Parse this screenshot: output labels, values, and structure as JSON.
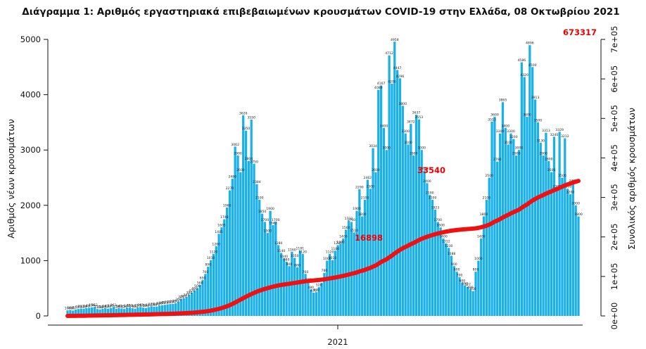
{
  "chart_data": {
    "type": "bar",
    "title": "Διάγραμμα 1: Αριθμός εργαστηριακά επιβεβαιωμένων κρουσμάτων COVID-19 στην Ελλάδα, 08 Οκτωβρίου 2021",
    "ylabel": "Αριθμός νέων κρουσμάτων",
    "y2label": "Συνολικός αριθμός κρουσμάτων",
    "xlabel": "",
    "ylim": [
      0,
      5000
    ],
    "y2lim": [
      0,
      700000
    ],
    "yticks": [
      "0",
      "1000",
      "2000",
      "3000",
      "4000",
      "5000"
    ],
    "y2ticks": [
      "0e+00",
      "1e+05",
      "2e+05",
      "3e+05",
      "4e+05",
      "5e+05",
      "6e+05",
      "7e+05"
    ],
    "xticks": [
      "2021"
    ],
    "colors": {
      "bars": "#1ab0e8",
      "cumulative": "#ee1111",
      "labels": "#ee0000"
    },
    "series": [
      {
        "name": "",
        "kind": "bar",
        "values": [
          100,
          109,
          97,
          117,
          125,
          133,
          129,
          141,
          147,
          156,
          162,
          125,
          118,
          130,
          142,
          132,
          145,
          161,
          128,
          140,
          135,
          126,
          148,
          152,
          140,
          132,
          155,
          162,
          150,
          144,
          160,
          175,
          168,
          170,
          188,
          195,
          201,
          210,
          215,
          220,
          230,
          260,
          305,
          320,
          345,
          380,
          420,
          460,
          500,
          560,
          650,
          760,
          890,
          1010,
          1120,
          1260,
          1485,
          1605,
          1748,
          1960,
          2270,
          2480,
          3062,
          2900,
          2600,
          3626,
          3350,
          2804,
          3550,
          2750,
          2384,
          2100,
          1850,
          1700,
          1500,
          1900,
          1642,
          1700,
          1280,
          1140,
          1040,
          980,
          900,
          1160,
          1050,
          880,
          1181,
          1120,
          760,
          620,
          480,
          420,
          430,
          520,
          600,
          780,
          1000,
          1120,
          1010,
          1180,
          1280,
          1300,
          1400,
          1560,
          1722,
          1700,
          1510,
          1900,
          2290,
          1800,
          2100,
          2462,
          2300,
          3034,
          2600,
          4089,
          4167,
          3400,
          3000,
          4712,
          4200,
          4958,
          4447,
          4296,
          3800,
          3300,
          3100,
          3472,
          2900,
          3637,
          3553,
          3000,
          2628,
          2400,
          2190,
          2100,
          1923,
          1700,
          1600,
          1400,
          1312,
          1230,
          1088,
          900,
          800,
          700,
          600,
          550,
          527,
          480,
          450,
          800,
          1000,
          1400,
          1800,
          2100,
          2500,
          3513,
          3600,
          2790,
          3300,
          3865,
          3400,
          3100,
          3300,
          3200,
          2900,
          3000,
          4586,
          4320,
          3600,
          4896,
          4500,
          3913,
          3500,
          3130,
          2900,
          3313,
          2800,
          2600,
          3240,
          2300,
          3329,
          2500,
          3212,
          2300,
          2200,
          2407,
          2000,
          1800
        ]
      },
      {
        "name": "",
        "kind": "line",
        "values": [
          100,
          160,
          220,
          290,
          370,
          460,
          555,
          660,
          775,
          900,
          1030,
          1140,
          1260,
          1380,
          1510,
          1640,
          1790,
          1950,
          2080,
          2230,
          2360,
          2490,
          2640,
          2800,
          2940,
          3080,
          3240,
          3400,
          3560,
          3710,
          3880,
          4060,
          4230,
          4410,
          4600,
          4800,
          5000,
          5220,
          5440,
          5670,
          5900,
          6180,
          6500,
          6840,
          7200,
          7600,
          8050,
          8550,
          9100,
          9700,
          10400,
          11200,
          12200,
          13400,
          14800,
          16300,
          18000,
          19900,
          22100,
          24500,
          27300,
          30400,
          34000,
          37600,
          41300,
          44900,
          48600,
          52000,
          55300,
          58400,
          61300,
          63900,
          66300,
          68400,
          70300,
          72300,
          74100,
          75700,
          77100,
          78400,
          79500,
          80500,
          81400,
          82500,
          83600,
          84600,
          85700,
          86800,
          87700,
          88500,
          89200,
          89800,
          90400,
          91100,
          91800,
          92700,
          93800,
          95000,
          96100,
          97300,
          98600,
          100000,
          101500,
          103100,
          104900,
          106600,
          108200,
          110200,
          112600,
          114500,
          116700,
          119300,
          121700,
          124900,
          127700,
          132100,
          136500,
          140100,
          143400,
          148300,
          152800,
          158000,
          162700,
          167300,
          171300,
          174700,
          178000,
          181600,
          184600,
          188400,
          192100,
          195200,
          197900,
          200400,
          202700,
          204900,
          206900,
          208700,
          210400,
          211900,
          213300,
          214600,
          215800,
          216700,
          217500,
          218200,
          218800,
          219400,
          220000,
          220500,
          221000,
          221800,
          222900,
          224400,
          226300,
          228500,
          231100,
          234800,
          238600,
          241500,
          245000,
          249100,
          252700,
          256000,
          259400,
          262800,
          265900,
          269000,
          273800,
          278300,
          282100,
          287300,
          292000,
          296100,
          299800,
          303100,
          306100,
          309600,
          312500,
          315200,
          318600,
          321000,
          324500,
          327100,
          330500,
          332900,
          335200,
          337700,
          339800,
          341700
        ]
      }
    ],
    "annotations": {
      "cumulative_labels": [
        "16898",
        "33540"
      ],
      "final_label": "673317"
    }
  }
}
